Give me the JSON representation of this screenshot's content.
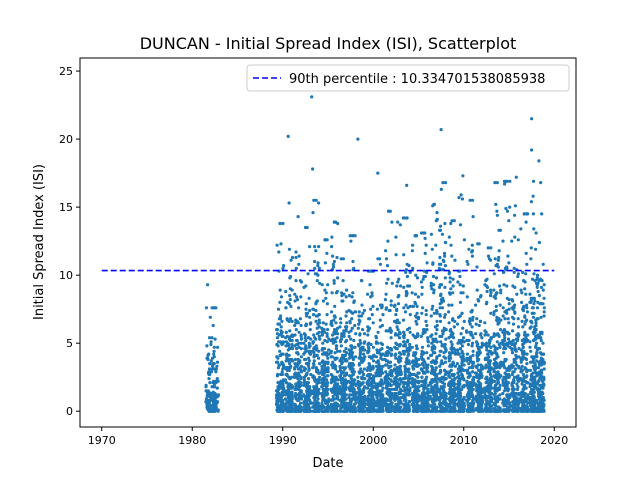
{
  "chart_data": {
    "type": "scatter",
    "title": "DUNCAN - Initial Spread Index (ISI), Scatterplot",
    "xlabel": "Date",
    "ylabel": "Initial Spread Index (ISI)",
    "xlim": [
      1967.6,
      2022.4
    ],
    "ylim": [
      -1.16,
      25.96
    ],
    "x_ticks": [
      1970,
      1980,
      1990,
      2000,
      2010,
      2020
    ],
    "y_ticks": [
      0,
      5,
      10,
      15,
      20,
      25
    ],
    "grid": false,
    "legend": {
      "placement": "top-right",
      "entries": [
        "90th percentile : 10.334701538085938"
      ]
    },
    "reference_line": {
      "name": "90th percentile : 10.334701538085938",
      "y": 10.334701538085938,
      "x_start": 1970,
      "x_end": 2020,
      "style": "dashed",
      "color": "#0000ff"
    },
    "point_color": "#1f77b4",
    "notable_points": [
      {
        "x": 1981.7,
        "y": 9.3
      },
      {
        "x": 1990.6,
        "y": 20.2
      },
      {
        "x": 1993.2,
        "y": 23.1
      },
      {
        "x": 1993.3,
        "y": 17.8
      },
      {
        "x": 1998.3,
        "y": 20.0
      },
      {
        "x": 2000.5,
        "y": 17.5
      },
      {
        "x": 2003.7,
        "y": 16.6
      },
      {
        "x": 2007.5,
        "y": 20.7
      },
      {
        "x": 2009.9,
        "y": 17.3
      },
      {
        "x": 2015.8,
        "y": 17.2
      },
      {
        "x": 2017.5,
        "y": 21.5
      },
      {
        "x": 2017.5,
        "y": 19.2
      },
      {
        "x": 2018.3,
        "y": 18.4
      }
    ],
    "season_clusters": [
      {
        "start": 1981.5,
        "end": 1982.9,
        "max": 7.6
      },
      {
        "start": 1989.3,
        "end": 1990.1,
        "max": 13.8
      },
      {
        "start": 1990.3,
        "end": 1991.1,
        "max": 15.3
      },
      {
        "start": 1991.3,
        "end": 1992.1,
        "max": 14.3
      },
      {
        "start": 1992.3,
        "end": 1993.1,
        "max": 13.5
      },
      {
        "start": 1993.3,
        "end": 1994.1,
        "max": 15.5
      },
      {
        "start": 1994.3,
        "end": 1995.1,
        "max": 12.6
      },
      {
        "start": 1995.3,
        "end": 1996.1,
        "max": 13.9
      },
      {
        "start": 1996.3,
        "end": 1997.1,
        "max": 11.2
      },
      {
        "start": 1997.3,
        "end": 1998.1,
        "max": 12.9
      },
      {
        "start": 1998.3,
        "end": 1999.1,
        "max": 9.6
      },
      {
        "start": 1999.3,
        "end": 2000.1,
        "max": 10.3
      },
      {
        "start": 2000.3,
        "end": 2001.1,
        "max": 11.2
      },
      {
        "start": 2001.3,
        "end": 2002.1,
        "max": 14.7
      },
      {
        "start": 2002.3,
        "end": 2003.1,
        "max": 13.9
      },
      {
        "start": 2003.3,
        "end": 2004.1,
        "max": 14.2
      },
      {
        "start": 2004.3,
        "end": 2005.1,
        "max": 12.9
      },
      {
        "start": 2005.3,
        "end": 2006.1,
        "max": 13.1
      },
      {
        "start": 2006.3,
        "end": 2007.1,
        "max": 15.2
      },
      {
        "start": 2007.3,
        "end": 2008.1,
        "max": 16.8
      },
      {
        "start": 2008.3,
        "end": 2009.1,
        "max": 14.0
      },
      {
        "start": 2009.3,
        "end": 2010.1,
        "max": 15.9
      },
      {
        "start": 2010.3,
        "end": 2011.1,
        "max": 15.5
      },
      {
        "start": 2011.3,
        "end": 2012.1,
        "max": 12.3
      },
      {
        "start": 2012.3,
        "end": 2013.1,
        "max": 12.0
      },
      {
        "start": 2013.3,
        "end": 2014.1,
        "max": 16.8
      },
      {
        "start": 2014.3,
        "end": 2015.1,
        "max": 16.9
      },
      {
        "start": 2015.3,
        "end": 2016.1,
        "max": 15.1
      },
      {
        "start": 2016.3,
        "end": 2017.1,
        "max": 14.5
      },
      {
        "start": 2017.3,
        "end": 2018.1,
        "max": 16.9
      },
      {
        "start": 2018.1,
        "end": 2018.9,
        "max": 16.8
      }
    ]
  }
}
